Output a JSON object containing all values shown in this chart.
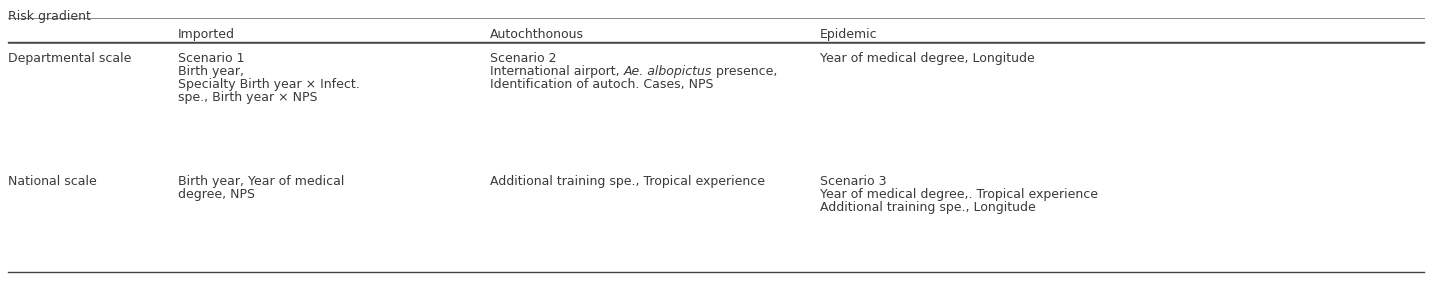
{
  "header_label": "Risk gradient",
  "col_headers": [
    "Imported",
    "Autochthonous",
    "Epidemic"
  ],
  "row_headers": [
    "Departmental scale",
    "National scale"
  ],
  "cells": [
    [
      "Scenario 1\nBirth year,\nSpecialty Birth year × Infect.\nspe., Birth year × NPS",
      "Scenario 2\nInternational airport, Ae. albopictus presence,\nIdentification of autoch. Cases, NPS",
      "Year of medical degree, Longitude"
    ],
    [
      "Birth year, Year of medical\ndegree, NPS",
      "Additional training spe., Tropical experience",
      "Scenario 3\nYear of medical degree,. Tropical experience\nAdditional training spe., Longitude"
    ]
  ],
  "background_color": "#ffffff",
  "text_color": "#3a3a3a",
  "font_size": 9.0,
  "line_color": "#888888",
  "line_color_thick": "#444444"
}
